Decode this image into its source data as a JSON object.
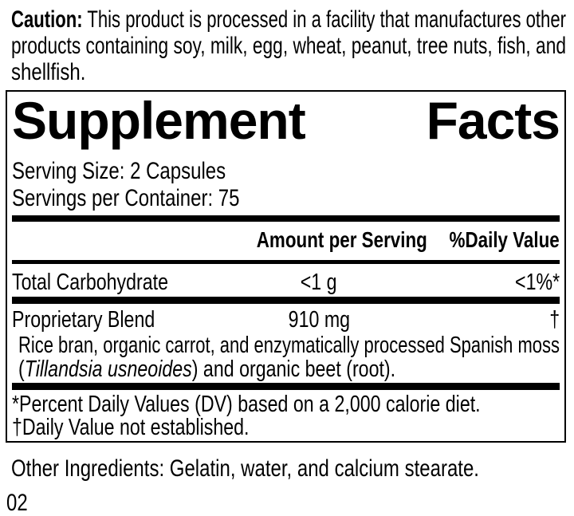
{
  "colors": {
    "ink": "#000000",
    "background": "#ffffff"
  },
  "caution": {
    "label": "Caution:",
    "line1_rest": "This product is processed in a facility that manufactures other",
    "line2": "products containing soy, milk, egg, wheat, peanut, tree nuts, fish, and",
    "line3": "shellfish."
  },
  "panel": {
    "title": {
      "word1": "Supplement",
      "word2": "Facts"
    },
    "serving_size": "Serving Size: 2 Capsules",
    "servings_per_container": "Servings per Container: 75",
    "columns": {
      "amount": "Amount per Serving",
      "daily_value": "%Daily Value"
    },
    "rows": [
      {
        "name": "Total Carbohydrate",
        "amount": "<1 g",
        "daily_value": "<1%*"
      },
      {
        "name": "Proprietary Blend",
        "amount": "910 mg",
        "daily_value": "†"
      }
    ],
    "blend_description": {
      "line1": "Rice bran, organic carrot, and enzymatically processed Spanish moss",
      "line2_pre": "(",
      "line2_italic": "Tillandsia usneoides",
      "line2_post": ") and organic beet (root)."
    },
    "footnotes": [
      "*Percent Daily Values (DV) based on a 2,000 calorie diet.",
      "†Daily Value not established."
    ]
  },
  "other_ingredients": "Other Ingredients: Gelatin, water, and calcium stearate.",
  "page_code": "02"
}
